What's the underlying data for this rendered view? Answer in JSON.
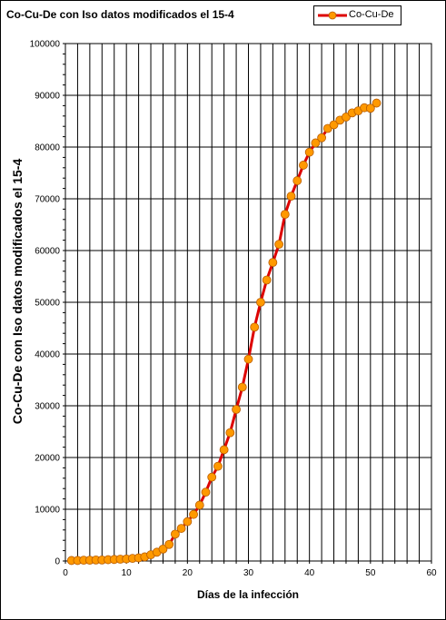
{
  "chart_data": {
    "type": "line",
    "title": "Co-Cu-De  con Iso datos modificados el 15-4",
    "xlabel": "Días de la infección",
    "ylabel": "Co-Cu-De con Iso datos modificados el 15-4",
    "xlim": [
      0,
      60
    ],
    "ylim": [
      0,
      100000
    ],
    "x_ticks": [
      "0",
      "10",
      "20",
      "30",
      "40",
      "50",
      "60"
    ],
    "y_ticks": [
      "0",
      "10000",
      "20000",
      "30000",
      "40000",
      "50000",
      "60000",
      "70000",
      "80000",
      "90000",
      "100000"
    ],
    "grid": true,
    "legend_position": "top-right",
    "series": [
      {
        "name": "Co-Cu-De",
        "color": "#dd0000",
        "marker_color": "#ff9900",
        "x": [
          1,
          2,
          3,
          4,
          5,
          6,
          7,
          8,
          9,
          10,
          11,
          12,
          13,
          14,
          15,
          16,
          17,
          18,
          19,
          20,
          21,
          22,
          23,
          24,
          25,
          26,
          27,
          28,
          29,
          30,
          31,
          32,
          33,
          34,
          35,
          36,
          37,
          38,
          39,
          40,
          41,
          42,
          43,
          44,
          45,
          46,
          47,
          48,
          49,
          50,
          51
        ],
        "values": [
          100,
          100,
          150,
          150,
          200,
          200,
          250,
          300,
          350,
          400,
          500,
          600,
          800,
          1200,
          1700,
          2300,
          3200,
          5200,
          6300,
          7600,
          9000,
          10800,
          13300,
          16200,
          18300,
          21500,
          24800,
          29300,
          33600,
          39000,
          45200,
          50000,
          54300,
          57700,
          61200,
          67000,
          70500,
          73500,
          76500,
          79000,
          80800,
          81800,
          83600,
          84300,
          85200,
          85800,
          86600,
          87000,
          87600,
          87500,
          88500
        ]
      }
    ]
  }
}
